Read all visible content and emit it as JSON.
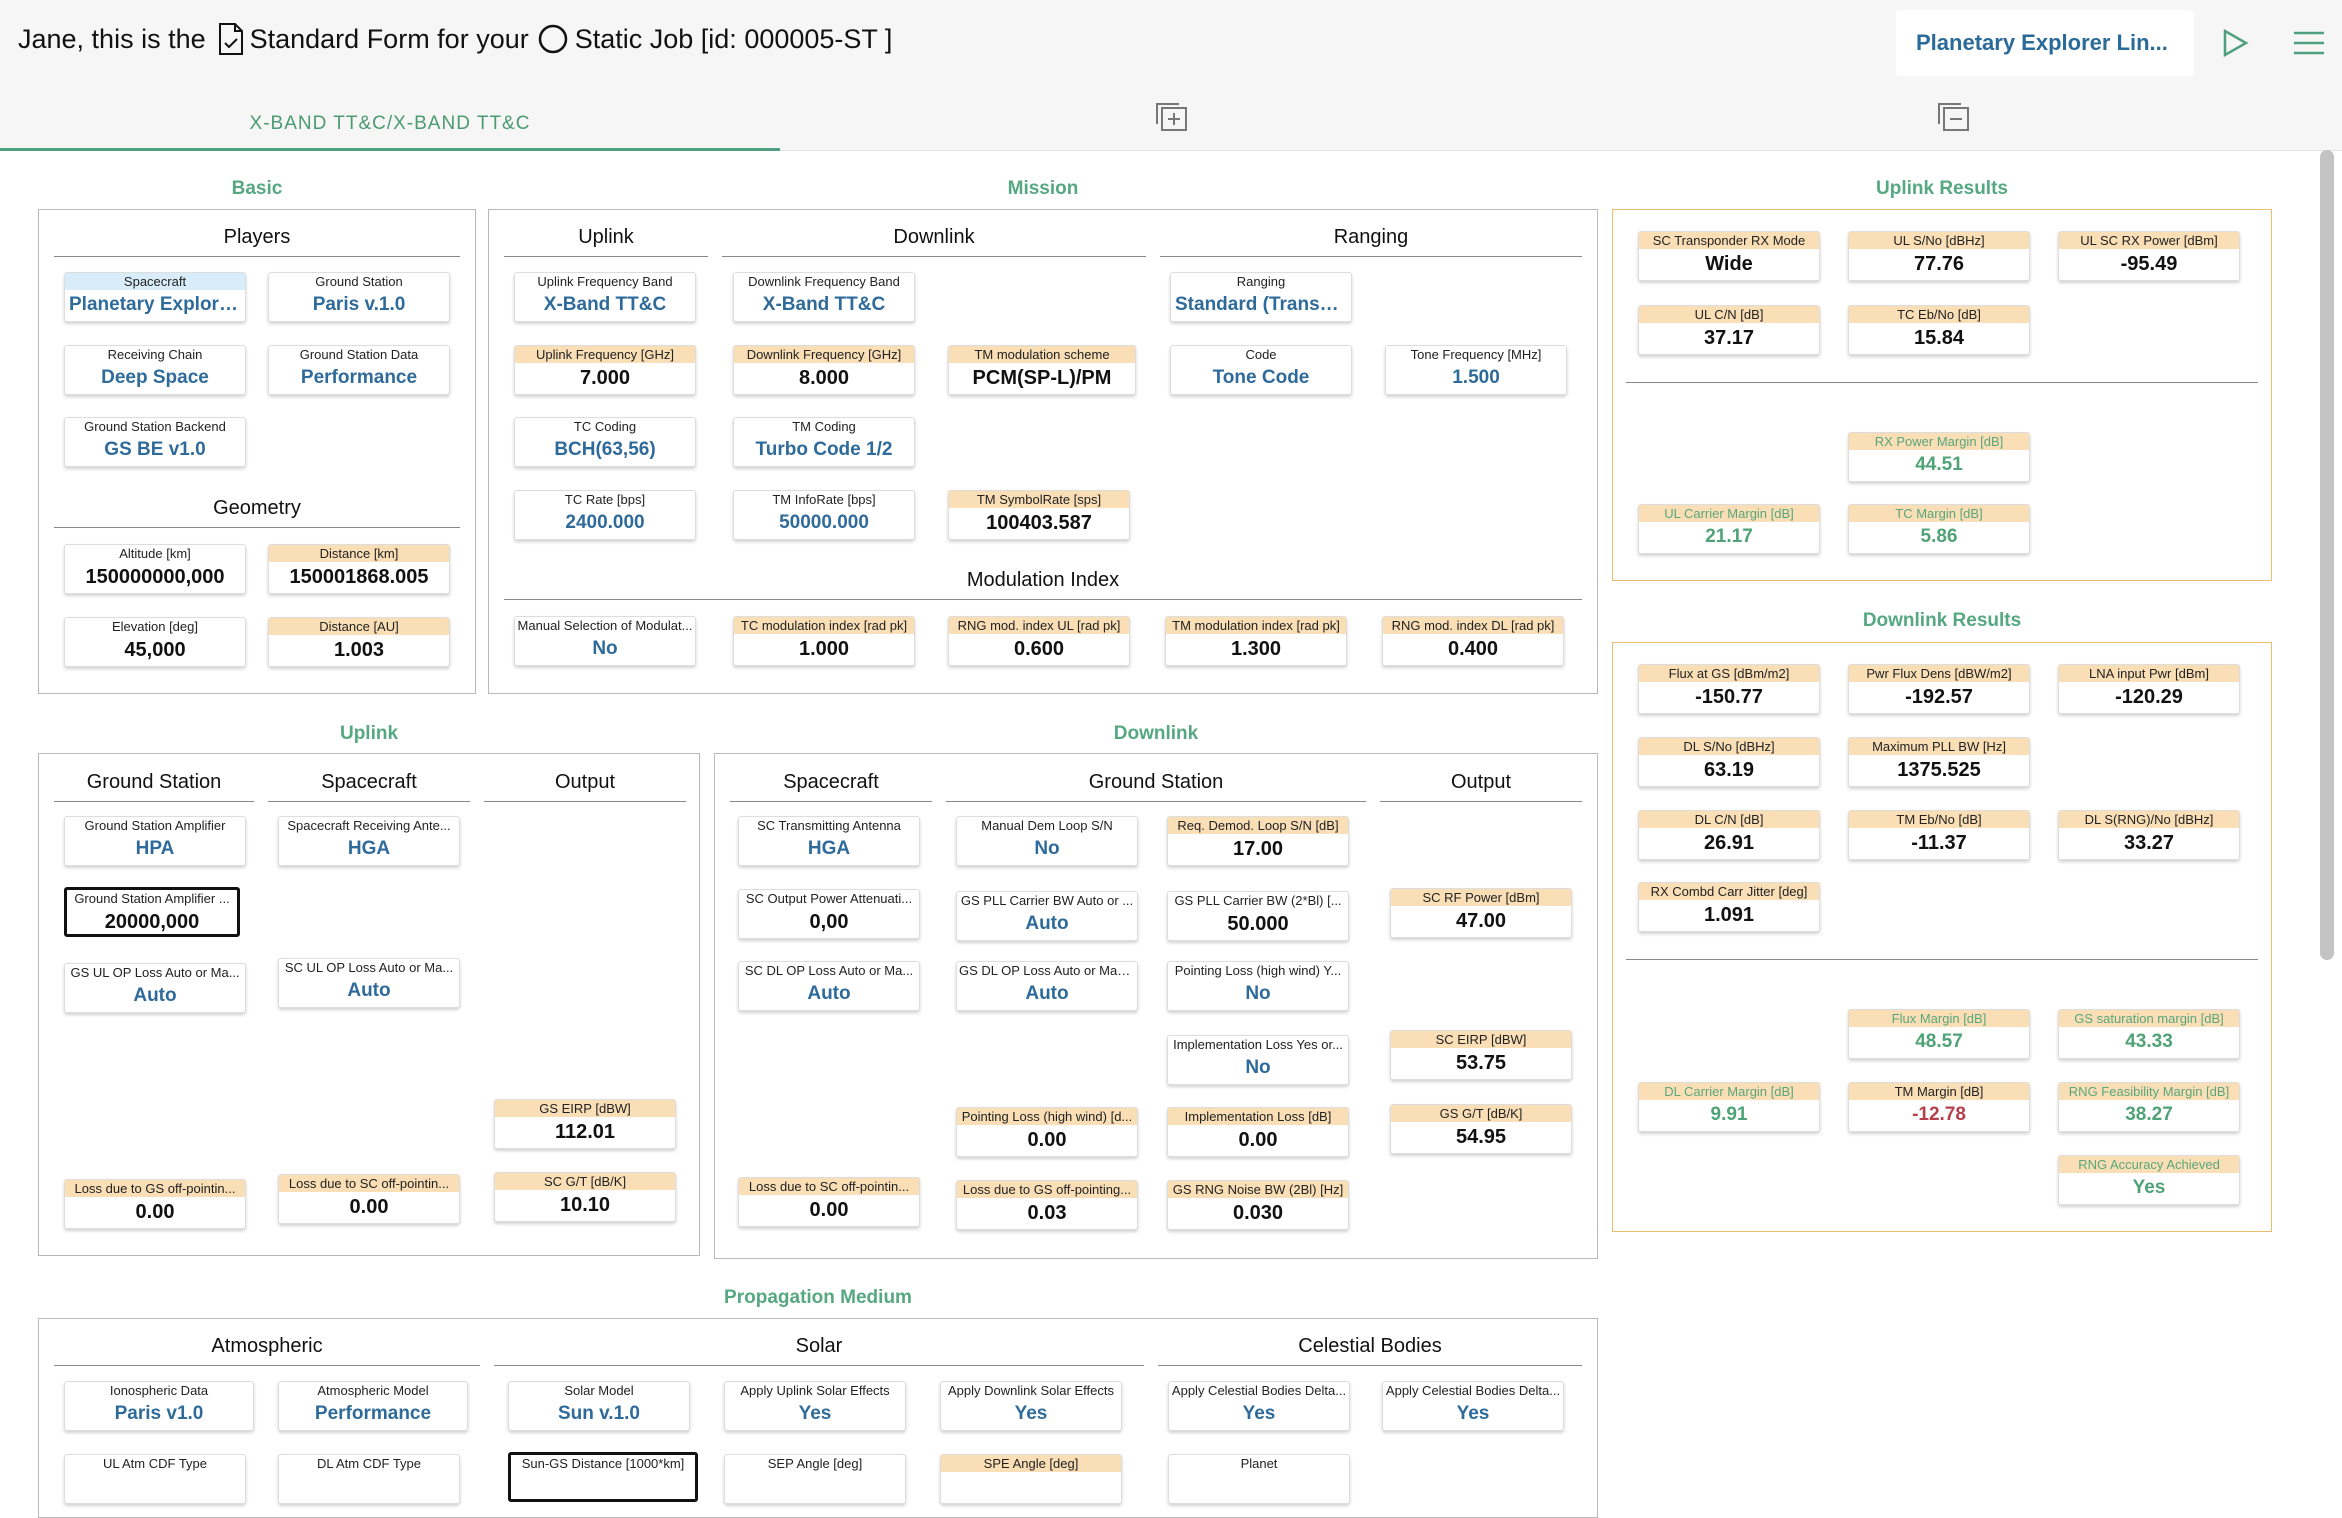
{
  "header": {
    "prefix": "Jane, this is the",
    "form": "Standard Form for your",
    "job": "Static Job [id: 000005-ST ]",
    "project": "Planetary Explorer Lin..."
  },
  "tab": "X-BAND TT&C/X-BAND TT&C",
  "sections": {
    "basic": "Basic",
    "mission": "Mission",
    "uplink_results": "Uplink Results",
    "uplink": "Uplink",
    "downlink": "Downlink",
    "downlink_results": "Downlink Results",
    "propagation": "Propagation Medium"
  },
  "subs": {
    "players": "Players",
    "geometry": "Geometry",
    "m_uplink": "Uplink",
    "m_downlink": "Downlink",
    "m_ranging": "Ranging",
    "modulation_index": "Modulation Index",
    "u_gs": "Ground Station",
    "u_sc": "Spacecraft",
    "u_out": "Output",
    "d_sc": "Spacecraft",
    "d_gs": "Ground Station",
    "d_out": "Output",
    "atmospheric": "Atmospheric",
    "solar": "Solar",
    "celestial": "Celestial Bodies"
  },
  "fields": {
    "spacecraft": {
      "l": "Spacecraft",
      "v": "Planetary Explorer ..."
    },
    "ground_station": {
      "l": "Ground Station",
      "v": "Paris v.1.0"
    },
    "receiving_chain": {
      "l": "Receiving Chain",
      "v": "Deep Space"
    },
    "gs_data": {
      "l": "Ground Station Data",
      "v": "Performance"
    },
    "gs_backend": {
      "l": "Ground Station Backend",
      "v": "GS BE v1.0"
    },
    "altitude": {
      "l": "Altitude [km]",
      "v": "150000000,000"
    },
    "distance_km": {
      "l": "Distance [km]",
      "v": "150001868.005"
    },
    "elevation": {
      "l": "Elevation [deg]",
      "v": "45,000"
    },
    "distance_au": {
      "l": "Distance [AU]",
      "v": "1.003"
    },
    "ul_freq_band": {
      "l": "Uplink Frequency Band",
      "v": "X-Band TT&C"
    },
    "dl_freq_band": {
      "l": "Downlink Frequency Band",
      "v": "X-Band TT&C"
    },
    "ranging": {
      "l": "Ranging",
      "v": "Standard (Transpare..."
    },
    "ul_freq": {
      "l": "Uplink Frequency [GHz]",
      "v": "7.000"
    },
    "dl_freq": {
      "l": "Downlink Frequency [GHz]",
      "v": "8.000"
    },
    "tm_mod": {
      "l": "TM modulation scheme",
      "v": "PCM(SP-L)/PM"
    },
    "code": {
      "l": "Code",
      "v": "Tone Code"
    },
    "tone_freq": {
      "l": "Tone Frequency [MHz]",
      "v": "1.500"
    },
    "tc_coding": {
      "l": "TC Coding",
      "v": "BCH(63,56)"
    },
    "tm_coding": {
      "l": "TM Coding",
      "v": "Turbo Code 1/2"
    },
    "tc_rate": {
      "l": "TC Rate [bps]",
      "v": "2400.000"
    },
    "tm_inforate": {
      "l": "TM InfoRate [bps]",
      "v": "50000.000"
    },
    "tm_symrate": {
      "l": "TM SymbolRate [sps]",
      "v": "100403.587"
    },
    "manual_mod": {
      "l": "Manual Selection of Modulat...",
      "v": "No"
    },
    "tc_mod_idx": {
      "l": "TC modulation index [rad pk]",
      "v": "1.000"
    },
    "rng_ul_idx": {
      "l": "RNG mod. index UL [rad pk]",
      "v": "0.600"
    },
    "tm_mod_idx": {
      "l": "TM modulation index [rad pk]",
      "v": "1.300"
    },
    "rng_dl_idx": {
      "l": "RNG mod. index DL [rad pk]",
      "v": "0.400"
    },
    "sc_rx_mode": {
      "l": "SC Transponder RX Mode",
      "v": "Wide"
    },
    "ul_sno": {
      "l": "UL S/No [dBHz]",
      "v": "77.76"
    },
    "ul_sc_rx_pwr": {
      "l": "UL SC RX Power [dBm]",
      "v": "-95.49"
    },
    "ul_cn": {
      "l": "UL C/N [dB]",
      "v": "37.17"
    },
    "tc_ebno": {
      "l": "TC Eb/No [dB]",
      "v": "15.84"
    },
    "rx_pwr_margin": {
      "l": "RX Power Margin [dB]",
      "v": "44.51"
    },
    "ul_carrier_margin": {
      "l": "UL Carrier Margin [dB]",
      "v": "21.17"
    },
    "tc_margin": {
      "l": "TC Margin [dB]",
      "v": "5.86"
    },
    "flux_gs": {
      "l": "Flux at GS [dBm/m2]",
      "v": "-150.77"
    },
    "pwr_flux_dens": {
      "l": "Pwr Flux Dens [dBW/m2]",
      "v": "-192.57"
    },
    "lna_input": {
      "l": "LNA input Pwr [dBm]",
      "v": "-120.29"
    },
    "dl_sno": {
      "l": "DL S/No [dBHz]",
      "v": "63.19"
    },
    "max_pll_bw": {
      "l": "Maximum PLL BW [Hz]",
      "v": "1375.525"
    },
    "dl_cn": {
      "l": "DL C/N [dB]",
      "v": "26.91"
    },
    "tm_ebno": {
      "l": "TM Eb/No [dB]",
      "v": "-11.37"
    },
    "dl_s_rng": {
      "l": "DL S(RNG)/No [dBHz]",
      "v": "33.27"
    },
    "rx_combd": {
      "l": "RX Combd Carr Jitter [deg]",
      "v": "1.091"
    },
    "flux_margin": {
      "l": "Flux Margin [dB]",
      "v": "48.57"
    },
    "gs_sat_margin": {
      "l": "GS saturation margin [dB]",
      "v": "43.33"
    },
    "dl_carrier_margin": {
      "l": "DL Carrier Margin [dB]",
      "v": "9.91"
    },
    "tm_margin": {
      "l": "TM Margin [dB]",
      "v": "-12.78"
    },
    "rng_feas": {
      "l": "RNG Feasibility Margin [dB]",
      "v": "38.27"
    },
    "rng_acc": {
      "l": "RNG Accuracy Achieved",
      "v": "Yes"
    },
    "gs_amp": {
      "l": "Ground Station Amplifier",
      "v": "HPA"
    },
    "sc_rx_ant": {
      "l": "Spacecraft Receiving Ante...",
      "v": "HGA"
    },
    "gs_amp2": {
      "l": "Ground Station Amplifier ...",
      "v": "20000,000"
    },
    "gs_ul_op": {
      "l": "GS UL OP Loss Auto or Ma...",
      "v": "Auto"
    },
    "sc_ul_op": {
      "l": "SC UL OP Loss Auto or Ma...",
      "v": "Auto"
    },
    "gs_eirp": {
      "l": "GS EIRP [dBW]",
      "v": "112.01"
    },
    "loss_gs_off_u": {
      "l": "Loss due to GS off-pointin...",
      "v": "0.00"
    },
    "loss_sc_off_u": {
      "l": "Loss due to SC off-pointin...",
      "v": "0.00"
    },
    "sc_gt": {
      "l": "SC G/T [dB/K]",
      "v": "10.10"
    },
    "sc_tx_ant": {
      "l": "SC Transmitting Antenna",
      "v": "HGA"
    },
    "manual_dem": {
      "l": "Manual Dem Loop S/N",
      "v": "No"
    },
    "req_demod": {
      "l": "Req. Demod. Loop S/N [dB]",
      "v": "17.00"
    },
    "sc_out_att": {
      "l": "SC Output Power Attenuati...",
      "v": "0,00"
    },
    "gs_pll_auto": {
      "l": "GS PLL Carrier BW Auto or ...",
      "v": "Auto"
    },
    "gs_pll_bw": {
      "l": "GS PLL Carrier BW (2*Bl) [...",
      "v": "50.000"
    },
    "sc_rf_pwr": {
      "l": "SC RF Power [dBm]",
      "v": "47.00"
    },
    "sc_dl_op": {
      "l": "SC DL OP Loss Auto or Ma...",
      "v": "Auto"
    },
    "gs_dl_op": {
      "l": "GS DL OP Loss Auto or Man...",
      "v": "Auto"
    },
    "pointing_yn": {
      "l": "Pointing Loss (high wind) Y...",
      "v": "No"
    },
    "impl_yn": {
      "l": "Implementation Loss Yes or...",
      "v": "No"
    },
    "sc_eirp": {
      "l": "SC EIRP [dBW]",
      "v": "53.75"
    },
    "pointing_loss": {
      "l": "Pointing Loss (high wind) [d...",
      "v": "0.00"
    },
    "impl_loss": {
      "l": "Implementation Loss [dB]",
      "v": "0.00"
    },
    "gs_gt": {
      "l": "GS G/T [dB/K]",
      "v": "54.95"
    },
    "loss_sc_off_d": {
      "l": "Loss due to SC off-pointin...",
      "v": "0.00"
    },
    "loss_gs_off_d": {
      "l": "Loss due to GS off-pointing...",
      "v": "0.03"
    },
    "gs_rng_noise": {
      "l": "GS RNG Noise BW (2Bl) [Hz]",
      "v": "0.030"
    },
    "iono_data": {
      "l": "Ionospheric Data",
      "v": "Paris v1.0"
    },
    "atm_model": {
      "l": "Atmospheric Model",
      "v": "Performance"
    },
    "solar_model": {
      "l": "Solar Model",
      "v": "Sun v.1.0"
    },
    "ul_solar": {
      "l": "Apply Uplink Solar Effects",
      "v": "Yes"
    },
    "dl_solar": {
      "l": "Apply Downlink Solar Effects",
      "v": "Yes"
    },
    "cel_delta1": {
      "l": "Apply Celestial Bodies Delta...",
      "v": "Yes"
    },
    "cel_delta2": {
      "l": "Apply Celestial Bodies Delta...",
      "v": "Yes"
    },
    "ul_atm_cdf": {
      "l": "UL Atm CDF Type",
      "v": ""
    },
    "dl_atm_cdf": {
      "l": "DL Atm CDF Type",
      "v": ""
    },
    "sun_gs_dist": {
      "l": "Sun-GS Distance [1000*km]",
      "v": ""
    },
    "sep_angle": {
      "l": "SEP Angle [deg]",
      "v": ""
    },
    "spe_angle": {
      "l": "SPE Angle [deg]",
      "v": ""
    },
    "planet": {
      "l": "Planet",
      "v": ""
    }
  }
}
